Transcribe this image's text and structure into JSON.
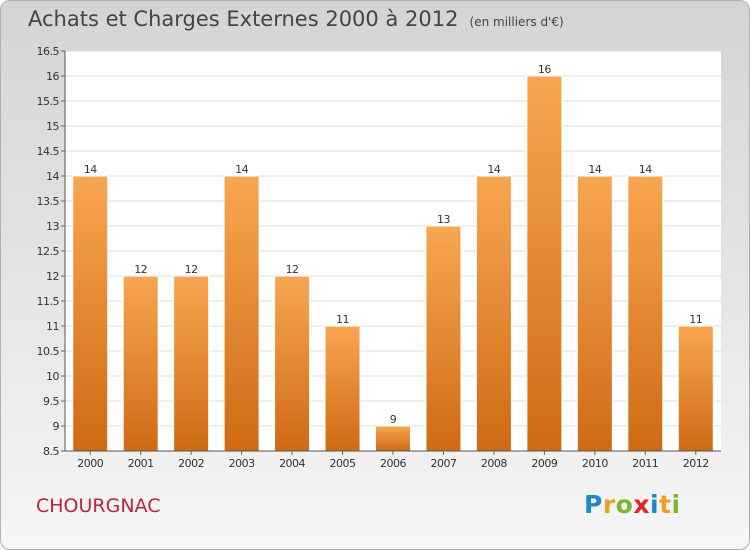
{
  "title": "Achats et Charges Externes 2000 à 2012",
  "subtitle": "(en milliers d'€)",
  "commune": "CHOURGNAC",
  "logo": {
    "letters": [
      "P",
      "r",
      "o",
      "x",
      "i",
      "t",
      "i"
    ],
    "colors": [
      "#1e86c9",
      "#f0a020",
      "#7cb72c",
      "#e0232d",
      "#1e86c9",
      "#f0a020",
      "#7cb72c"
    ]
  },
  "colors": {
    "bar_top": "#f8a650",
    "bar_bottom": "#cf6a14",
    "commune": "#c0213c"
  },
  "chart_data": {
    "type": "bar",
    "title": "Achats et Charges Externes 2000 à 2012",
    "subtitle": "(en milliers d'€)",
    "categories": [
      "2000",
      "2001",
      "2002",
      "2003",
      "2004",
      "2005",
      "2006",
      "2007",
      "2008",
      "2009",
      "2010",
      "2011",
      "2012"
    ],
    "values": [
      14,
      12,
      12,
      14,
      12,
      11,
      9,
      13,
      14,
      16,
      14,
      14,
      11
    ],
    "data_labels": [
      "14",
      "12",
      "12",
      "14",
      "12",
      "11",
      "9",
      "13",
      "14",
      "16",
      "14",
      "14",
      "11"
    ],
    "ylim": [
      8.5,
      16.5
    ],
    "yticks": [
      8.5,
      9,
      9.5,
      10,
      10.5,
      11,
      11.5,
      12,
      12.5,
      13,
      13.5,
      14,
      14.5,
      15,
      15.5,
      16,
      16.5
    ],
    "ytick_labels": [
      "8.5",
      "9",
      "9.5",
      "10",
      "10.5",
      "11",
      "11.5",
      "12",
      "12.5",
      "13",
      "13.5",
      "14",
      "14.5",
      "15",
      "15.5",
      "16",
      "16.5"
    ],
    "grid": true,
    "legend": false
  }
}
